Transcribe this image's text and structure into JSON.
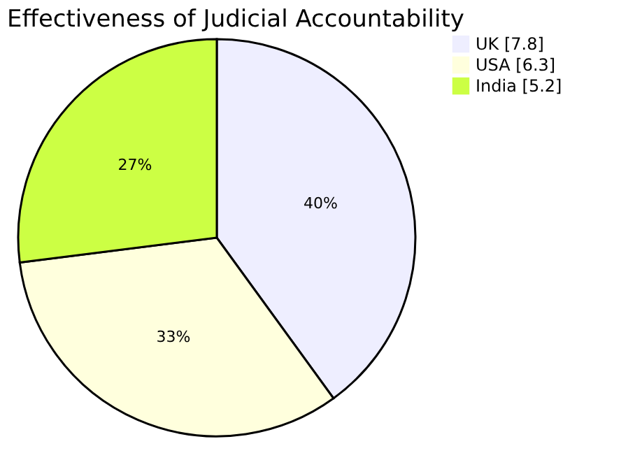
{
  "chart_data": {
    "type": "pie",
    "title": "Effectiveness of Judicial Accountability",
    "categories": [
      "UK [7.8]",
      "USA [6.3]",
      "India [5.2]"
    ],
    "values": [
      40,
      33,
      27
    ],
    "value_labels": [
      "40%",
      "33%",
      "27%"
    ],
    "colors": [
      "#eeeeff",
      "#ffffdd",
      "#ccff44"
    ],
    "legend": "right"
  }
}
